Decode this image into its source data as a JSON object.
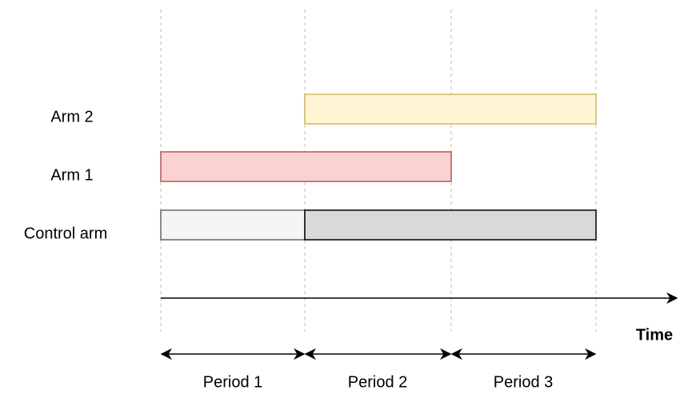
{
  "arms": [
    {
      "label": "Arm 2"
    },
    {
      "label": "Arm 1"
    },
    {
      "label": "Control arm"
    }
  ],
  "axis_label": "Time",
  "periods": [
    {
      "label": "Period 1"
    },
    {
      "label": "Period 2"
    },
    {
      "label": "Period 3"
    }
  ]
}
